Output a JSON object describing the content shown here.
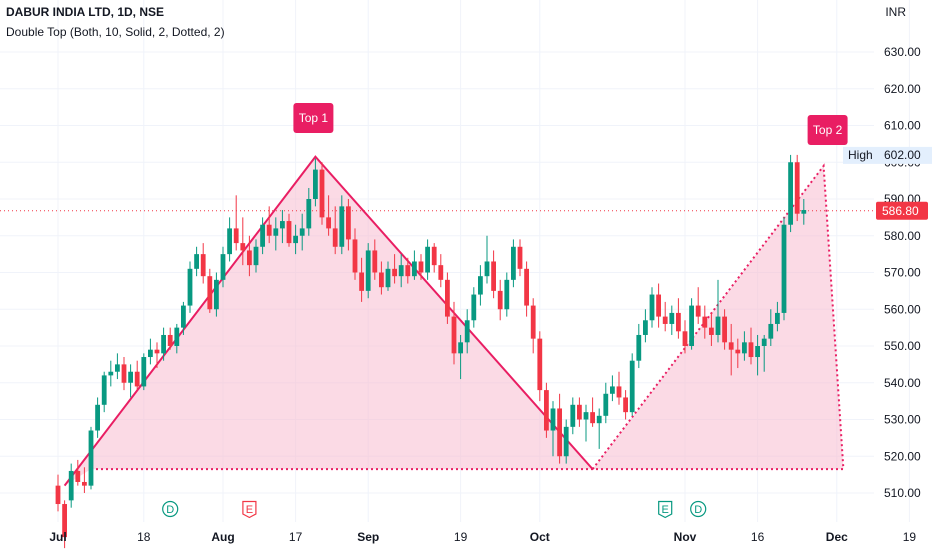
{
  "header": {
    "title": "DABUR INDIA LTD, 1D, NSE",
    "indicator": "Double Top (Both, 10, Solid, 2, Dotted, 2)",
    "currency": "INR"
  },
  "chart_data": {
    "type": "candlestick",
    "y_axis": {
      "ticks": [
        510,
        520,
        530,
        540,
        550,
        560,
        570,
        580,
        590,
        600,
        610,
        620,
        630
      ],
      "tick_labels": [
        "510.00",
        "520.00",
        "530.00",
        "540.00",
        "550.00",
        "560.00",
        "570.00",
        "580.00",
        "590.00",
        "600.00",
        "610.00",
        "620.00",
        "630.00"
      ],
      "range": [
        504,
        638
      ]
    },
    "x_axis": {
      "tick_labels": [
        "Jul",
        "18",
        "Aug",
        "17",
        "Sep",
        "19",
        "Oct",
        "Nov",
        "16",
        "Dec",
        "19"
      ],
      "tick_bar_index": [
        0,
        13,
        25,
        36,
        47,
        61,
        73,
        95,
        106,
        118,
        129
      ]
    },
    "price_label": {
      "value": "586.80",
      "price": 586.8,
      "color": "#f23645"
    },
    "high_label": {
      "text": "High",
      "value": "602.00",
      "price": 602.0
    },
    "pattern": {
      "name": "Double Top",
      "top1_label": "Top 1",
      "top2_label": "Top 2",
      "neckline": 516.5,
      "points": [
        {
          "bar": 1,
          "price": 512.0
        },
        {
          "bar": 39,
          "price": 601.5
        },
        {
          "bar": 81,
          "price": 516.5
        },
        {
          "bar": 116,
          "price": 599.0
        },
        {
          "bar": 119,
          "price": 516.5
        }
      ],
      "fill_color": "#f8bbd0",
      "line_color": "#e91e63"
    },
    "events": [
      {
        "bar": 17,
        "label": "D",
        "color": "#089981"
      },
      {
        "bar": 29,
        "label": "E",
        "color": "#f23645"
      },
      {
        "bar": 92,
        "label": "E",
        "color": "#089981"
      },
      {
        "bar": 97,
        "label": "D",
        "color": "#089981"
      }
    ],
    "candles": [
      [
        0,
        512,
        515,
        505,
        507
      ],
      [
        1,
        507,
        508,
        495,
        498
      ],
      [
        2,
        508,
        518,
        506,
        516
      ],
      [
        3,
        516,
        519,
        512,
        513
      ],
      [
        4,
        513,
        517,
        510,
        512
      ],
      [
        5,
        512,
        528,
        511,
        527
      ],
      [
        6,
        527,
        536,
        525,
        534
      ],
      [
        7,
        534,
        543,
        532,
        542
      ],
      [
        8,
        542,
        546,
        539,
        543
      ],
      [
        9,
        543,
        548,
        541,
        545
      ],
      [
        10,
        545,
        547,
        538,
        540
      ],
      [
        11,
        540,
        545,
        536,
        543
      ],
      [
        12,
        543,
        546,
        538,
        539
      ],
      [
        13,
        539,
        548,
        538,
        547
      ],
      [
        14,
        547,
        552,
        545,
        549
      ],
      [
        15,
        549,
        551,
        544,
        548
      ],
      [
        16,
        548,
        555,
        546,
        553
      ],
      [
        17,
        553,
        555,
        549,
        550
      ],
      [
        18,
        550,
        556,
        548,
        555
      ],
      [
        19,
        555,
        562,
        553,
        561
      ],
      [
        20,
        561,
        573,
        559,
        571
      ],
      [
        21,
        571,
        577,
        569,
        575
      ],
      [
        22,
        575,
        578,
        567,
        569
      ],
      [
        23,
        569,
        571,
        559,
        560
      ],
      [
        24,
        560,
        570,
        558,
        568
      ],
      [
        25,
        568,
        577,
        566,
        575
      ],
      [
        26,
        575,
        585,
        573,
        582
      ],
      [
        27,
        582,
        591,
        576,
        578
      ],
      [
        28,
        578,
        585,
        572,
        576
      ],
      [
        29,
        576,
        580,
        569,
        572
      ],
      [
        30,
        572,
        579,
        570,
        577
      ],
      [
        31,
        577,
        585,
        575,
        583
      ],
      [
        32,
        583,
        588,
        578,
        580
      ],
      [
        33,
        580,
        585,
        576,
        582
      ],
      [
        34,
        582,
        587,
        578,
        584
      ],
      [
        35,
        584,
        586,
        577,
        578
      ],
      [
        36,
        578,
        583,
        575,
        580
      ],
      [
        37,
        580,
        586,
        576,
        582
      ],
      [
        38,
        582,
        593,
        580,
        590
      ],
      [
        39,
        590,
        601,
        588,
        598
      ],
      [
        40,
        598,
        600,
        583,
        585
      ],
      [
        41,
        585,
        591,
        580,
        582
      ],
      [
        42,
        582,
        588,
        575,
        577
      ],
      [
        43,
        577,
        591,
        575,
        588
      ],
      [
        44,
        588,
        590,
        576,
        579
      ],
      [
        45,
        579,
        582,
        568,
        570
      ],
      [
        46,
        570,
        574,
        562,
        565
      ],
      [
        47,
        565,
        578,
        563,
        576
      ],
      [
        48,
        576,
        579,
        568,
        570
      ],
      [
        49,
        570,
        573,
        564,
        566
      ],
      [
        50,
        566,
        573,
        565,
        571
      ],
      [
        51,
        571,
        575,
        567,
        569
      ],
      [
        52,
        569,
        575,
        566,
        572
      ],
      [
        53,
        572,
        574,
        567,
        569
      ],
      [
        54,
        569,
        576,
        568,
        573
      ],
      [
        55,
        573,
        575,
        568,
        570
      ],
      [
        56,
        570,
        579,
        568,
        577
      ],
      [
        57,
        577,
        578,
        570,
        572
      ],
      [
        58,
        572,
        575,
        566,
        568
      ],
      [
        59,
        568,
        570,
        556,
        558
      ],
      [
        60,
        558,
        562,
        545,
        548
      ],
      [
        61,
        548,
        553,
        541,
        551
      ],
      [
        62,
        551,
        560,
        548,
        557
      ],
      [
        63,
        557,
        566,
        555,
        564
      ],
      [
        64,
        564,
        572,
        561,
        569
      ],
      [
        65,
        569,
        580,
        567,
        573
      ],
      [
        66,
        573,
        576,
        563,
        565
      ],
      [
        67,
        565,
        568,
        557,
        560
      ],
      [
        68,
        560,
        570,
        558,
        568
      ],
      [
        69,
        568,
        579,
        566,
        577
      ],
      [
        70,
        577,
        579,
        569,
        571
      ],
      [
        71,
        571,
        573,
        558,
        561
      ],
      [
        72,
        561,
        563,
        548,
        552
      ],
      [
        73,
        552,
        554,
        535,
        538
      ],
      [
        74,
        538,
        540,
        525,
        527
      ],
      [
        75,
        527,
        535,
        520,
        533
      ],
      [
        76,
        533,
        537,
        518,
        520
      ],
      [
        77,
        520,
        530,
        518,
        528
      ],
      [
        78,
        528,
        536,
        526,
        534
      ],
      [
        79,
        534,
        536,
        528,
        530
      ],
      [
        80,
        530,
        534,
        524,
        532
      ],
      [
        81,
        532,
        536,
        528,
        529
      ],
      [
        82,
        529,
        533,
        522,
        531
      ],
      [
        83,
        531,
        540,
        529,
        537
      ],
      [
        84,
        537,
        542,
        535,
        539
      ],
      [
        85,
        539,
        543,
        534,
        536
      ],
      [
        86,
        536,
        538,
        530,
        532
      ],
      [
        87,
        532,
        548,
        531,
        546
      ],
      [
        88,
        546,
        556,
        544,
        553
      ],
      [
        89,
        553,
        560,
        551,
        557
      ],
      [
        90,
        557,
        566,
        555,
        564
      ],
      [
        91,
        564,
        567,
        555,
        558
      ],
      [
        92,
        558,
        562,
        554,
        556
      ],
      [
        93,
        556,
        561,
        553,
        559
      ],
      [
        94,
        559,
        563,
        552,
        554
      ],
      [
        95,
        554,
        557,
        548,
        550
      ],
      [
        96,
        550,
        563,
        549,
        561
      ],
      [
        97,
        561,
        566,
        556,
        558
      ],
      [
        98,
        558,
        561,
        552,
        555
      ],
      [
        99,
        555,
        559,
        550,
        553
      ],
      [
        100,
        553,
        568,
        551,
        558
      ],
      [
        101,
        558,
        560,
        549,
        551
      ],
      [
        102,
        551,
        556,
        542,
        549
      ],
      [
        103,
        549,
        552,
        544,
        548
      ],
      [
        104,
        548,
        554,
        546,
        551
      ],
      [
        105,
        551,
        555,
        545,
        547
      ],
      [
        106,
        547,
        553,
        542,
        550
      ],
      [
        107,
        550,
        553,
        543,
        552
      ],
      [
        108,
        552,
        560,
        550,
        556
      ],
      [
        109,
        556,
        562,
        554,
        559
      ],
      [
        110,
        559,
        585,
        557,
        583
      ],
      [
        111,
        583,
        602,
        581,
        600
      ],
      [
        112,
        600,
        602,
        584,
        586
      ],
      [
        113,
        586,
        590,
        583,
        587
      ]
    ]
  }
}
